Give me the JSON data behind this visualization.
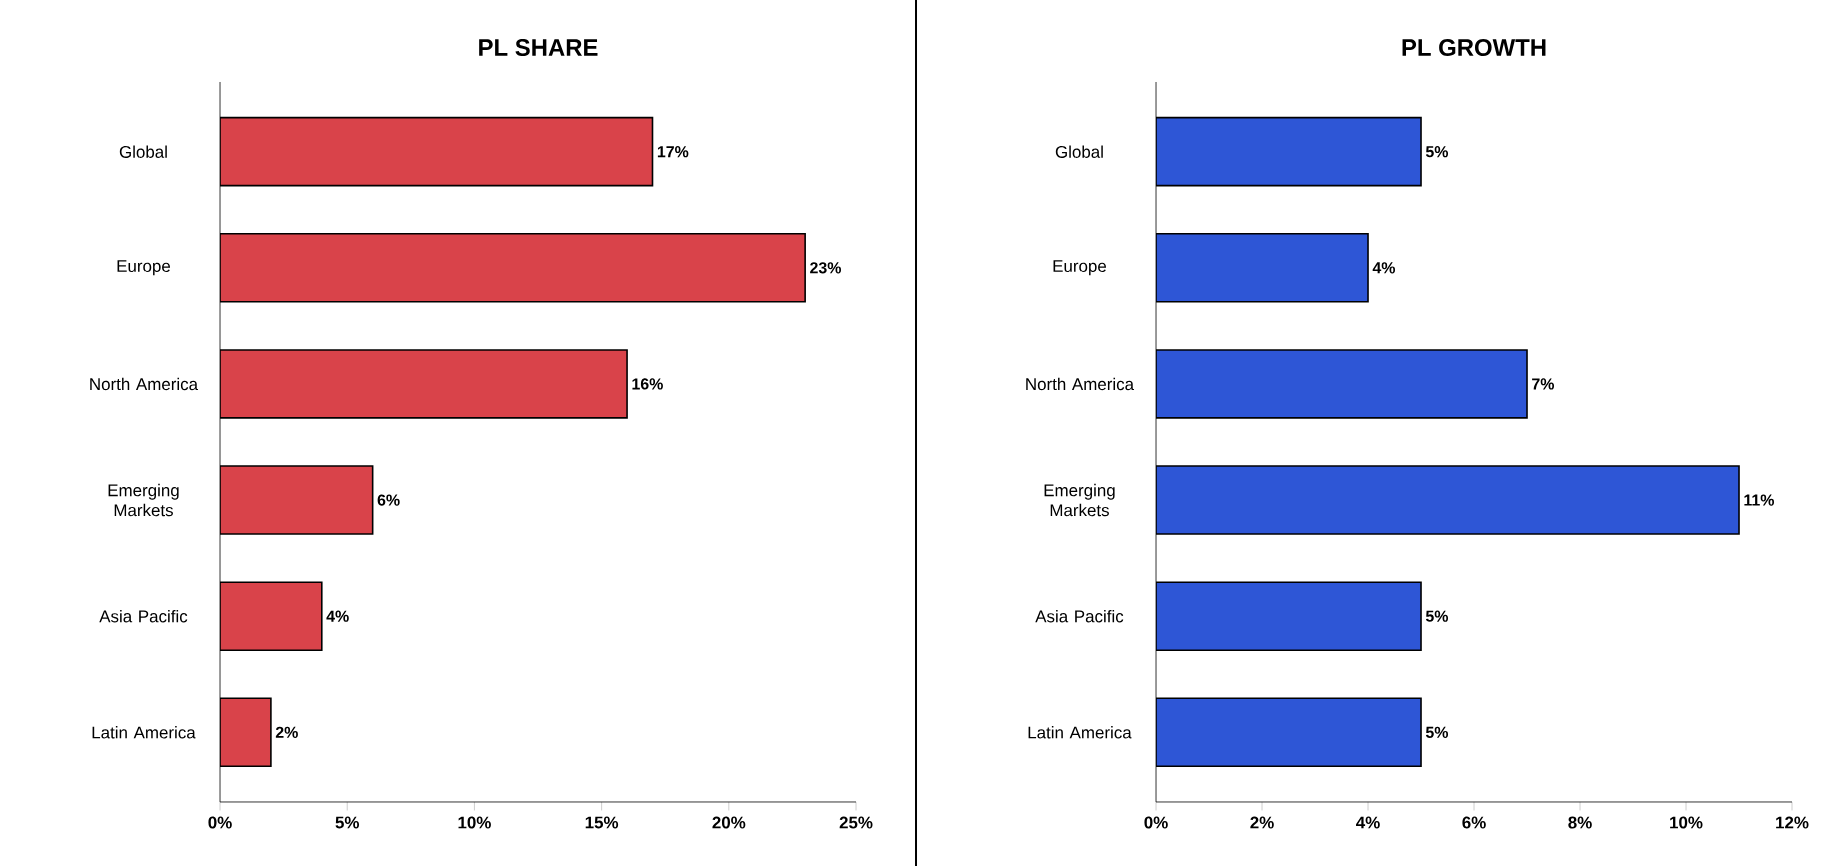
{
  "chart_data": [
    {
      "type": "bar",
      "orientation": "horizontal",
      "title": "PL SHARE",
      "categories": [
        "Global",
        "Europe",
        "North America",
        "Emerging Markets",
        "Asia Pacific",
        "Latin America"
      ],
      "values": [
        17,
        23,
        16,
        6,
        4,
        2
      ],
      "value_labels": [
        "17%",
        "23%",
        "16%",
        "6%",
        "4%",
        "2%"
      ],
      "color": "#d9434a",
      "xlim": [
        0,
        25
      ],
      "xticks": [
        {
          "value": 0,
          "label": "0%"
        },
        {
          "value": 5,
          "label": "5%"
        },
        {
          "value": 10,
          "label": "10%"
        },
        {
          "value": 15,
          "label": "15%"
        },
        {
          "value": 20,
          "label": "20%"
        },
        {
          "value": 25,
          "label": "25%"
        }
      ]
    },
    {
      "type": "bar",
      "orientation": "horizontal",
      "title": "PL GROWTH",
      "categories": [
        "Global",
        "Europe",
        "North America",
        "Emerging Markets",
        "Asia Pacific",
        "Latin America"
      ],
      "values": [
        5,
        4,
        7,
        11,
        5,
        5
      ],
      "value_labels": [
        "5%",
        "4%",
        "7%",
        "11%",
        "5%",
        "5%"
      ],
      "color": "#2e56d6",
      "xlim": [
        0,
        12
      ],
      "xticks": [
        {
          "value": 0,
          "label": "0%"
        },
        {
          "value": 2,
          "label": "2%"
        },
        {
          "value": 4,
          "label": "4%"
        },
        {
          "value": 6,
          "label": "6%"
        },
        {
          "value": 8,
          "label": "8%"
        },
        {
          "value": 10,
          "label": "10%"
        },
        {
          "value": 12,
          "label": "12%"
        }
      ]
    }
  ]
}
